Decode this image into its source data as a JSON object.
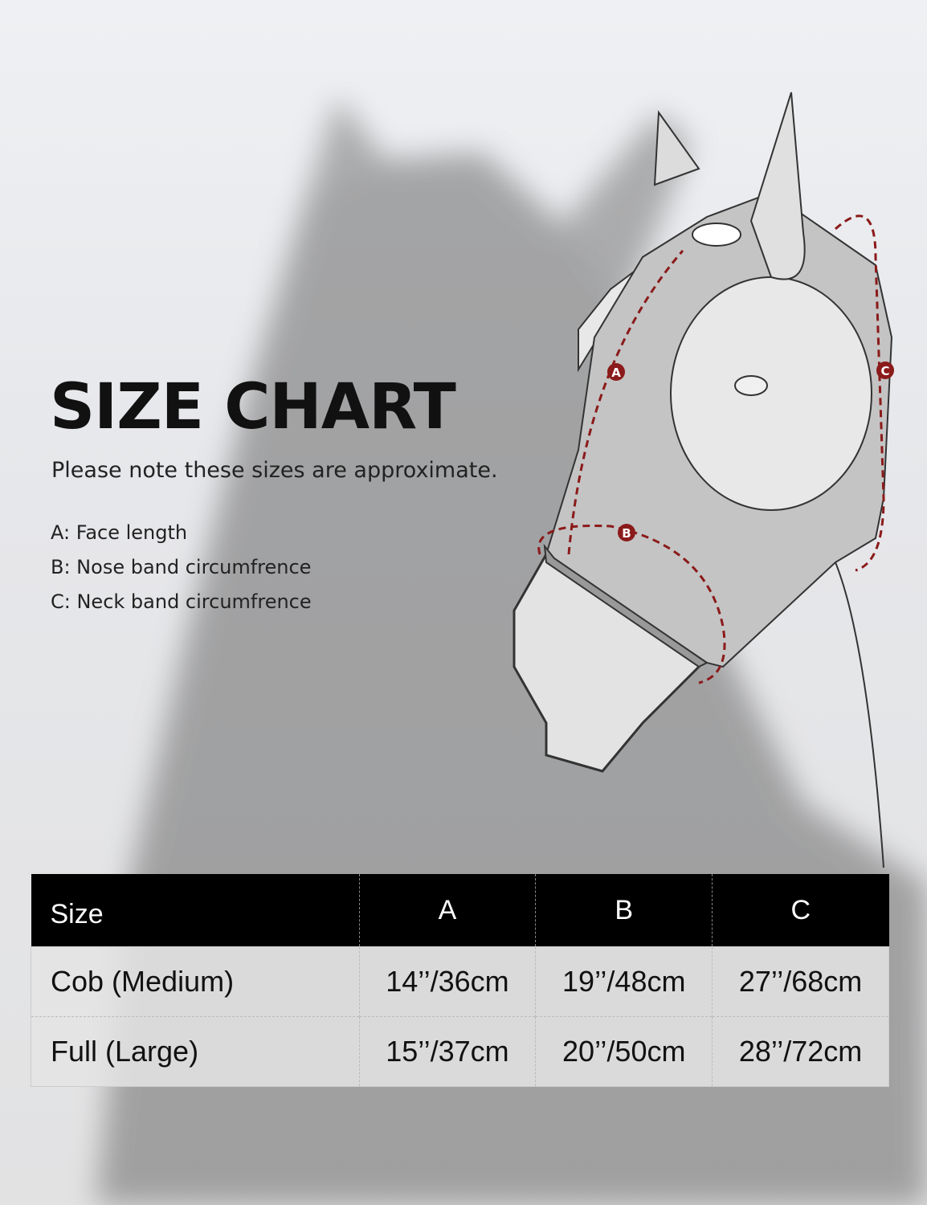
{
  "title": "SIZE CHART",
  "note": "Please note these sizes are approximate.",
  "legend": [
    "A: Face length",
    "B: Nose band circumfrence",
    "C: Neck band circumfrence"
  ],
  "diagram_labels": {
    "a": "A",
    "b": "B",
    "c": "C"
  },
  "colors": {
    "accent": "#8b1a1a",
    "header_bg": "#000000",
    "mask": "#c4c4c4"
  },
  "table": {
    "headers": [
      "Size",
      "A",
      "B",
      "C"
    ],
    "rows": [
      [
        "Cob (Medium)",
        "14’’/36cm",
        "19’’/48cm",
        "27’’/68cm"
      ],
      [
        "Full (Large)",
        "15’’/37cm",
        "20’’/50cm",
        "28’’/72cm"
      ]
    ]
  }
}
